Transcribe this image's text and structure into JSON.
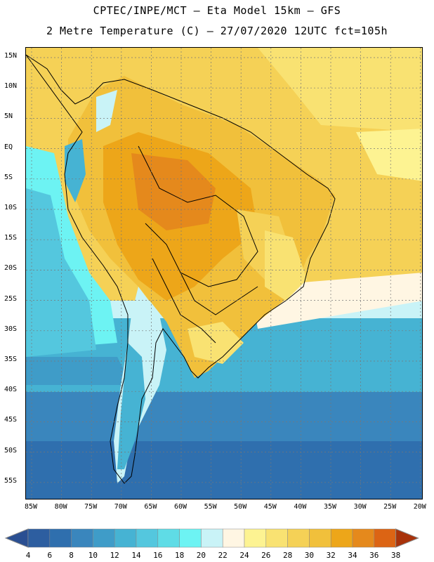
{
  "title": {
    "line1": "CPTEC/INPE/MCT –  Eta Model 15km – GFS",
    "line2": "2 Metre Temperature (C) – 27/07/2020 12UTC fct=105h"
  },
  "map": {
    "variable": "2 Metre Temperature",
    "units": "C",
    "lat_labels": [
      "15N",
      "10N",
      "5N",
      "EQ",
      "5S",
      "10S",
      "15S",
      "20S",
      "25S",
      "30S",
      "35S",
      "40S",
      "45S",
      "50S",
      "55S"
    ],
    "lon_labels": [
      "85W",
      "80W",
      "75W",
      "70W",
      "65W",
      "60W",
      "55W",
      "50W",
      "45W",
      "40W",
      "35W",
      "30W",
      "25W",
      "20W"
    ]
  },
  "colorbar": {
    "labels": [
      "4",
      "6",
      "8",
      "10",
      "12",
      "14",
      "16",
      "18",
      "20",
      "22",
      "24",
      "26",
      "28",
      "30",
      "32",
      "34",
      "36",
      "38"
    ],
    "colors": [
      "#2d5ea0",
      "#2f6fae",
      "#3a86bd",
      "#3f9cc8",
      "#46b3d3",
      "#54c7de",
      "#5fdce6",
      "#6df3f3",
      "#c9f3f7",
      "#fff6e3",
      "#fdf392",
      "#f9e272",
      "#f5d156",
      "#f1c03b",
      "#eda619",
      "#e5891c",
      "#dc6414",
      "#c13e0a"
    ],
    "under_color": "#2a4f92",
    "over_color": "#a8320a"
  }
}
